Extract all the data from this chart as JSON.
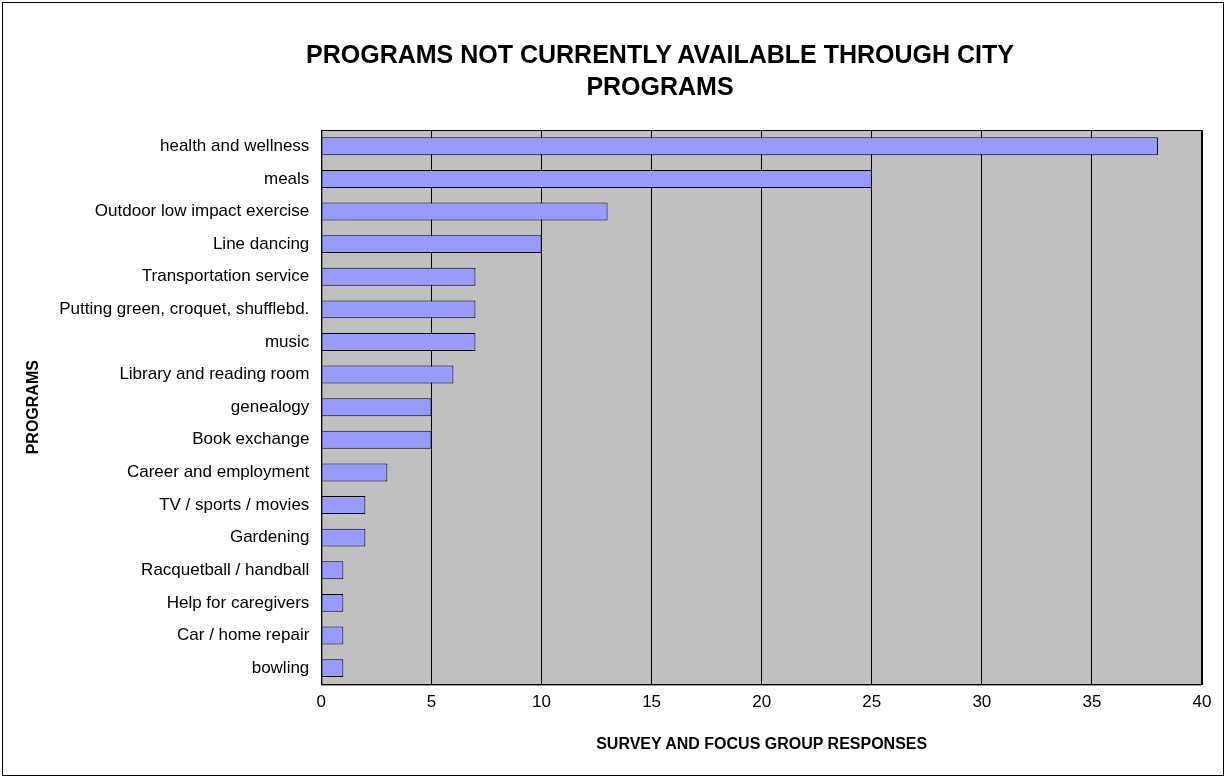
{
  "chart_data": {
    "type": "bar",
    "orientation": "horizontal",
    "title": "PROGRAMS NOT CURRENTLY AVAILABLE THROUGH CITY PROGRAMS",
    "xlabel": "SURVEY AND FOCUS GROUP RESPONSES",
    "ylabel": "PROGRAMS",
    "categories": [
      "health and wellness",
      "meals",
      "Outdoor low impact exercise",
      "Line dancing",
      "Transportation service",
      "Putting green, croquet, shufflebd.",
      "music",
      "Library and reading room",
      "genealogy",
      "Book exchange",
      "Career and employment",
      "TV / sports / movies",
      "Gardening",
      "Racquetball / handball",
      "Help for caregivers",
      "Car / home repair",
      "bowling"
    ],
    "values": [
      38,
      25,
      13,
      10,
      7,
      7,
      7,
      6,
      5,
      5,
      3,
      2,
      2,
      1,
      1,
      1,
      1
    ],
    "color": "#9999ff",
    "xlim": [
      0,
      40
    ],
    "xticks": [
      0,
      5,
      10,
      15,
      20,
      25,
      30,
      35,
      40
    ],
    "grid": "x"
  }
}
